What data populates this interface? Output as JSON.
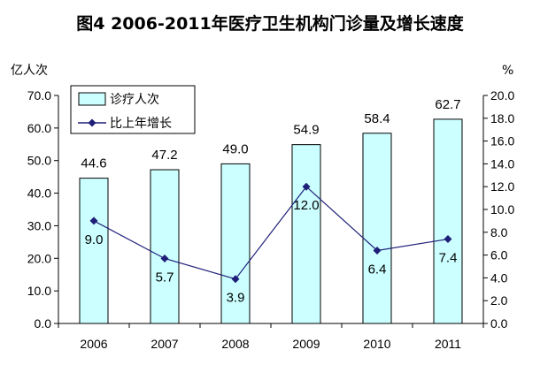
{
  "title": "图4  2006-2011年医疗卫生机构门诊量及增长速度",
  "chart_data": {
    "type": "bar",
    "categories": [
      "2006",
      "2007",
      "2008",
      "2009",
      "2010",
      "2011"
    ],
    "series": [
      {
        "name": "诊疗人次",
        "type": "bar",
        "axis": "left",
        "values": [
          44.6,
          47.2,
          49.0,
          54.9,
          58.4,
          62.7
        ],
        "color": "#ccffff",
        "data_labels": [
          "44.6",
          "47.2",
          "49.0",
          "54.9",
          "58.4",
          "62.7"
        ]
      },
      {
        "name": "比上年增长",
        "type": "line",
        "axis": "right",
        "values": [
          9.0,
          5.7,
          3.9,
          12.0,
          6.4,
          7.4
        ],
        "color": "#1f1f7a",
        "data_labels": [
          "9.0",
          "5.7",
          "3.9",
          "12.0",
          "6.4",
          "7.4"
        ]
      }
    ],
    "y_left": {
      "unit": "亿人次",
      "ylim": [
        0,
        70
      ],
      "ticks": [
        "0.0",
        "10.0",
        "20.0",
        "30.0",
        "40.0",
        "50.0",
        "60.0",
        "70.0"
      ]
    },
    "y_right": {
      "unit": "%",
      "ylim": [
        0,
        20
      ],
      "ticks": [
        "0.0",
        "2.0",
        "4.0",
        "6.0",
        "8.0",
        "10.0",
        "12.0",
        "14.0",
        "16.0",
        "18.0",
        "20.0"
      ]
    },
    "grid": false,
    "legend_position": "top-left"
  }
}
